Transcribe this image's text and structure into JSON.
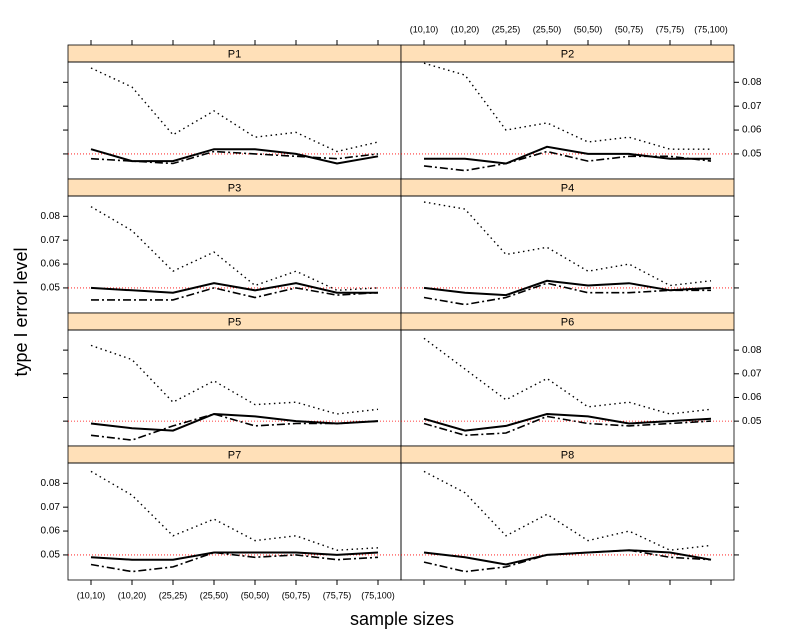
{
  "chart_data": {
    "type": "line",
    "xlabel": "sample sizes",
    "ylabel": "type I error level",
    "categories": [
      "(10,10)",
      "(10,20)",
      "(25,25)",
      "(25,50)",
      "(50,50)",
      "(50,75)",
      "(75,75)",
      "(75,100)"
    ],
    "ylim": [
      0.0395,
      0.0885
    ],
    "yticks": [
      0.05,
      0.06,
      0.07,
      0.08
    ],
    "reference_line": {
      "value": 0.05,
      "color": "#ff0000"
    },
    "strip_color": "#ffe0b8",
    "panels": [
      {
        "title": "P1",
        "series": [
          {
            "color": "#000000",
            "dash": "solid",
            "values": [
              0.052,
              0.047,
              0.047,
              0.052,
              0.052,
              0.05,
              0.046,
              0.049
            ]
          },
          {
            "color": "#000000",
            "dash": "dashdot",
            "values": [
              0.048,
              0.047,
              0.046,
              0.051,
              0.05,
              0.049,
              0.048,
              0.05
            ]
          },
          {
            "color": "#000000",
            "dash": "dotted",
            "values": [
              0.086,
              0.078,
              0.058,
              0.068,
              0.057,
              0.059,
              0.051,
              0.055
            ]
          }
        ]
      },
      {
        "title": "P2",
        "series": [
          {
            "color": "#000000",
            "dash": "solid",
            "values": [
              0.048,
              0.048,
              0.046,
              0.053,
              0.05,
              0.05,
              0.048,
              0.048
            ]
          },
          {
            "color": "#000000",
            "dash": "dashdot",
            "values": [
              0.045,
              0.043,
              0.046,
              0.051,
              0.047,
              0.049,
              0.049,
              0.047
            ]
          },
          {
            "color": "#000000",
            "dash": "dotted",
            "values": [
              0.088,
              0.083,
              0.06,
              0.063,
              0.055,
              0.057,
              0.052,
              0.052
            ]
          }
        ]
      },
      {
        "title": "P3",
        "series": [
          {
            "color": "#000000",
            "dash": "solid",
            "values": [
              0.05,
              0.049,
              0.048,
              0.052,
              0.049,
              0.052,
              0.048,
              0.048
            ]
          },
          {
            "color": "#000000",
            "dash": "dashdot",
            "values": [
              0.045,
              0.045,
              0.045,
              0.05,
              0.046,
              0.05,
              0.047,
              0.048
            ]
          },
          {
            "color": "#000000",
            "dash": "dotted",
            "values": [
              0.084,
              0.074,
              0.057,
              0.065,
              0.051,
              0.057,
              0.049,
              0.05
            ]
          }
        ]
      },
      {
        "title": "P4",
        "series": [
          {
            "color": "#000000",
            "dash": "solid",
            "values": [
              0.05,
              0.048,
              0.047,
              0.053,
              0.051,
              0.052,
              0.049,
              0.05
            ]
          },
          {
            "color": "#000000",
            "dash": "dashdot",
            "values": [
              0.046,
              0.043,
              0.046,
              0.052,
              0.048,
              0.048,
              0.049,
              0.049
            ]
          },
          {
            "color": "#000000",
            "dash": "dotted",
            "values": [
              0.086,
              0.083,
              0.064,
              0.067,
              0.057,
              0.06,
              0.051,
              0.053
            ]
          }
        ]
      },
      {
        "title": "P5",
        "series": [
          {
            "color": "#000000",
            "dash": "solid",
            "values": [
              0.049,
              0.047,
              0.046,
              0.053,
              0.052,
              0.05,
              0.049,
              0.05
            ]
          },
          {
            "color": "#000000",
            "dash": "dashdot",
            "values": [
              0.044,
              0.042,
              0.048,
              0.053,
              0.048,
              0.049,
              0.049,
              0.05
            ]
          },
          {
            "color": "#000000",
            "dash": "dotted",
            "values": [
              0.082,
              0.076,
              0.058,
              0.067,
              0.057,
              0.058,
              0.053,
              0.055
            ]
          }
        ]
      },
      {
        "title": "P6",
        "series": [
          {
            "color": "#000000",
            "dash": "solid",
            "values": [
              0.051,
              0.046,
              0.048,
              0.053,
              0.052,
              0.049,
              0.05,
              0.051
            ]
          },
          {
            "color": "#000000",
            "dash": "dashdot",
            "values": [
              0.049,
              0.044,
              0.045,
              0.052,
              0.049,
              0.048,
              0.049,
              0.05
            ]
          },
          {
            "color": "#000000",
            "dash": "dotted",
            "values": [
              0.085,
              0.072,
              0.059,
              0.068,
              0.056,
              0.058,
              0.053,
              0.055
            ]
          }
        ]
      },
      {
        "title": "P7",
        "series": [
          {
            "color": "#000000",
            "dash": "solid",
            "values": [
              0.049,
              0.048,
              0.048,
              0.051,
              0.051,
              0.051,
              0.05,
              0.051
            ]
          },
          {
            "color": "#000000",
            "dash": "dashdot",
            "values": [
              0.046,
              0.043,
              0.045,
              0.051,
              0.049,
              0.05,
              0.048,
              0.049
            ]
          },
          {
            "color": "#000000",
            "dash": "dotted",
            "values": [
              0.085,
              0.075,
              0.058,
              0.065,
              0.056,
              0.058,
              0.052,
              0.053
            ]
          }
        ]
      },
      {
        "title": "P8",
        "series": [
          {
            "color": "#000000",
            "dash": "solid",
            "values": [
              0.051,
              0.049,
              0.046,
              0.05,
              0.051,
              0.052,
              0.051,
              0.048
            ]
          },
          {
            "color": "#000000",
            "dash": "dashdot",
            "values": [
              0.047,
              0.043,
              0.045,
              0.05,
              0.051,
              0.052,
              0.049,
              0.048
            ]
          },
          {
            "color": "#000000",
            "dash": "dotted",
            "values": [
              0.085,
              0.076,
              0.058,
              0.067,
              0.056,
              0.06,
              0.052,
              0.054
            ]
          }
        ]
      }
    ]
  }
}
